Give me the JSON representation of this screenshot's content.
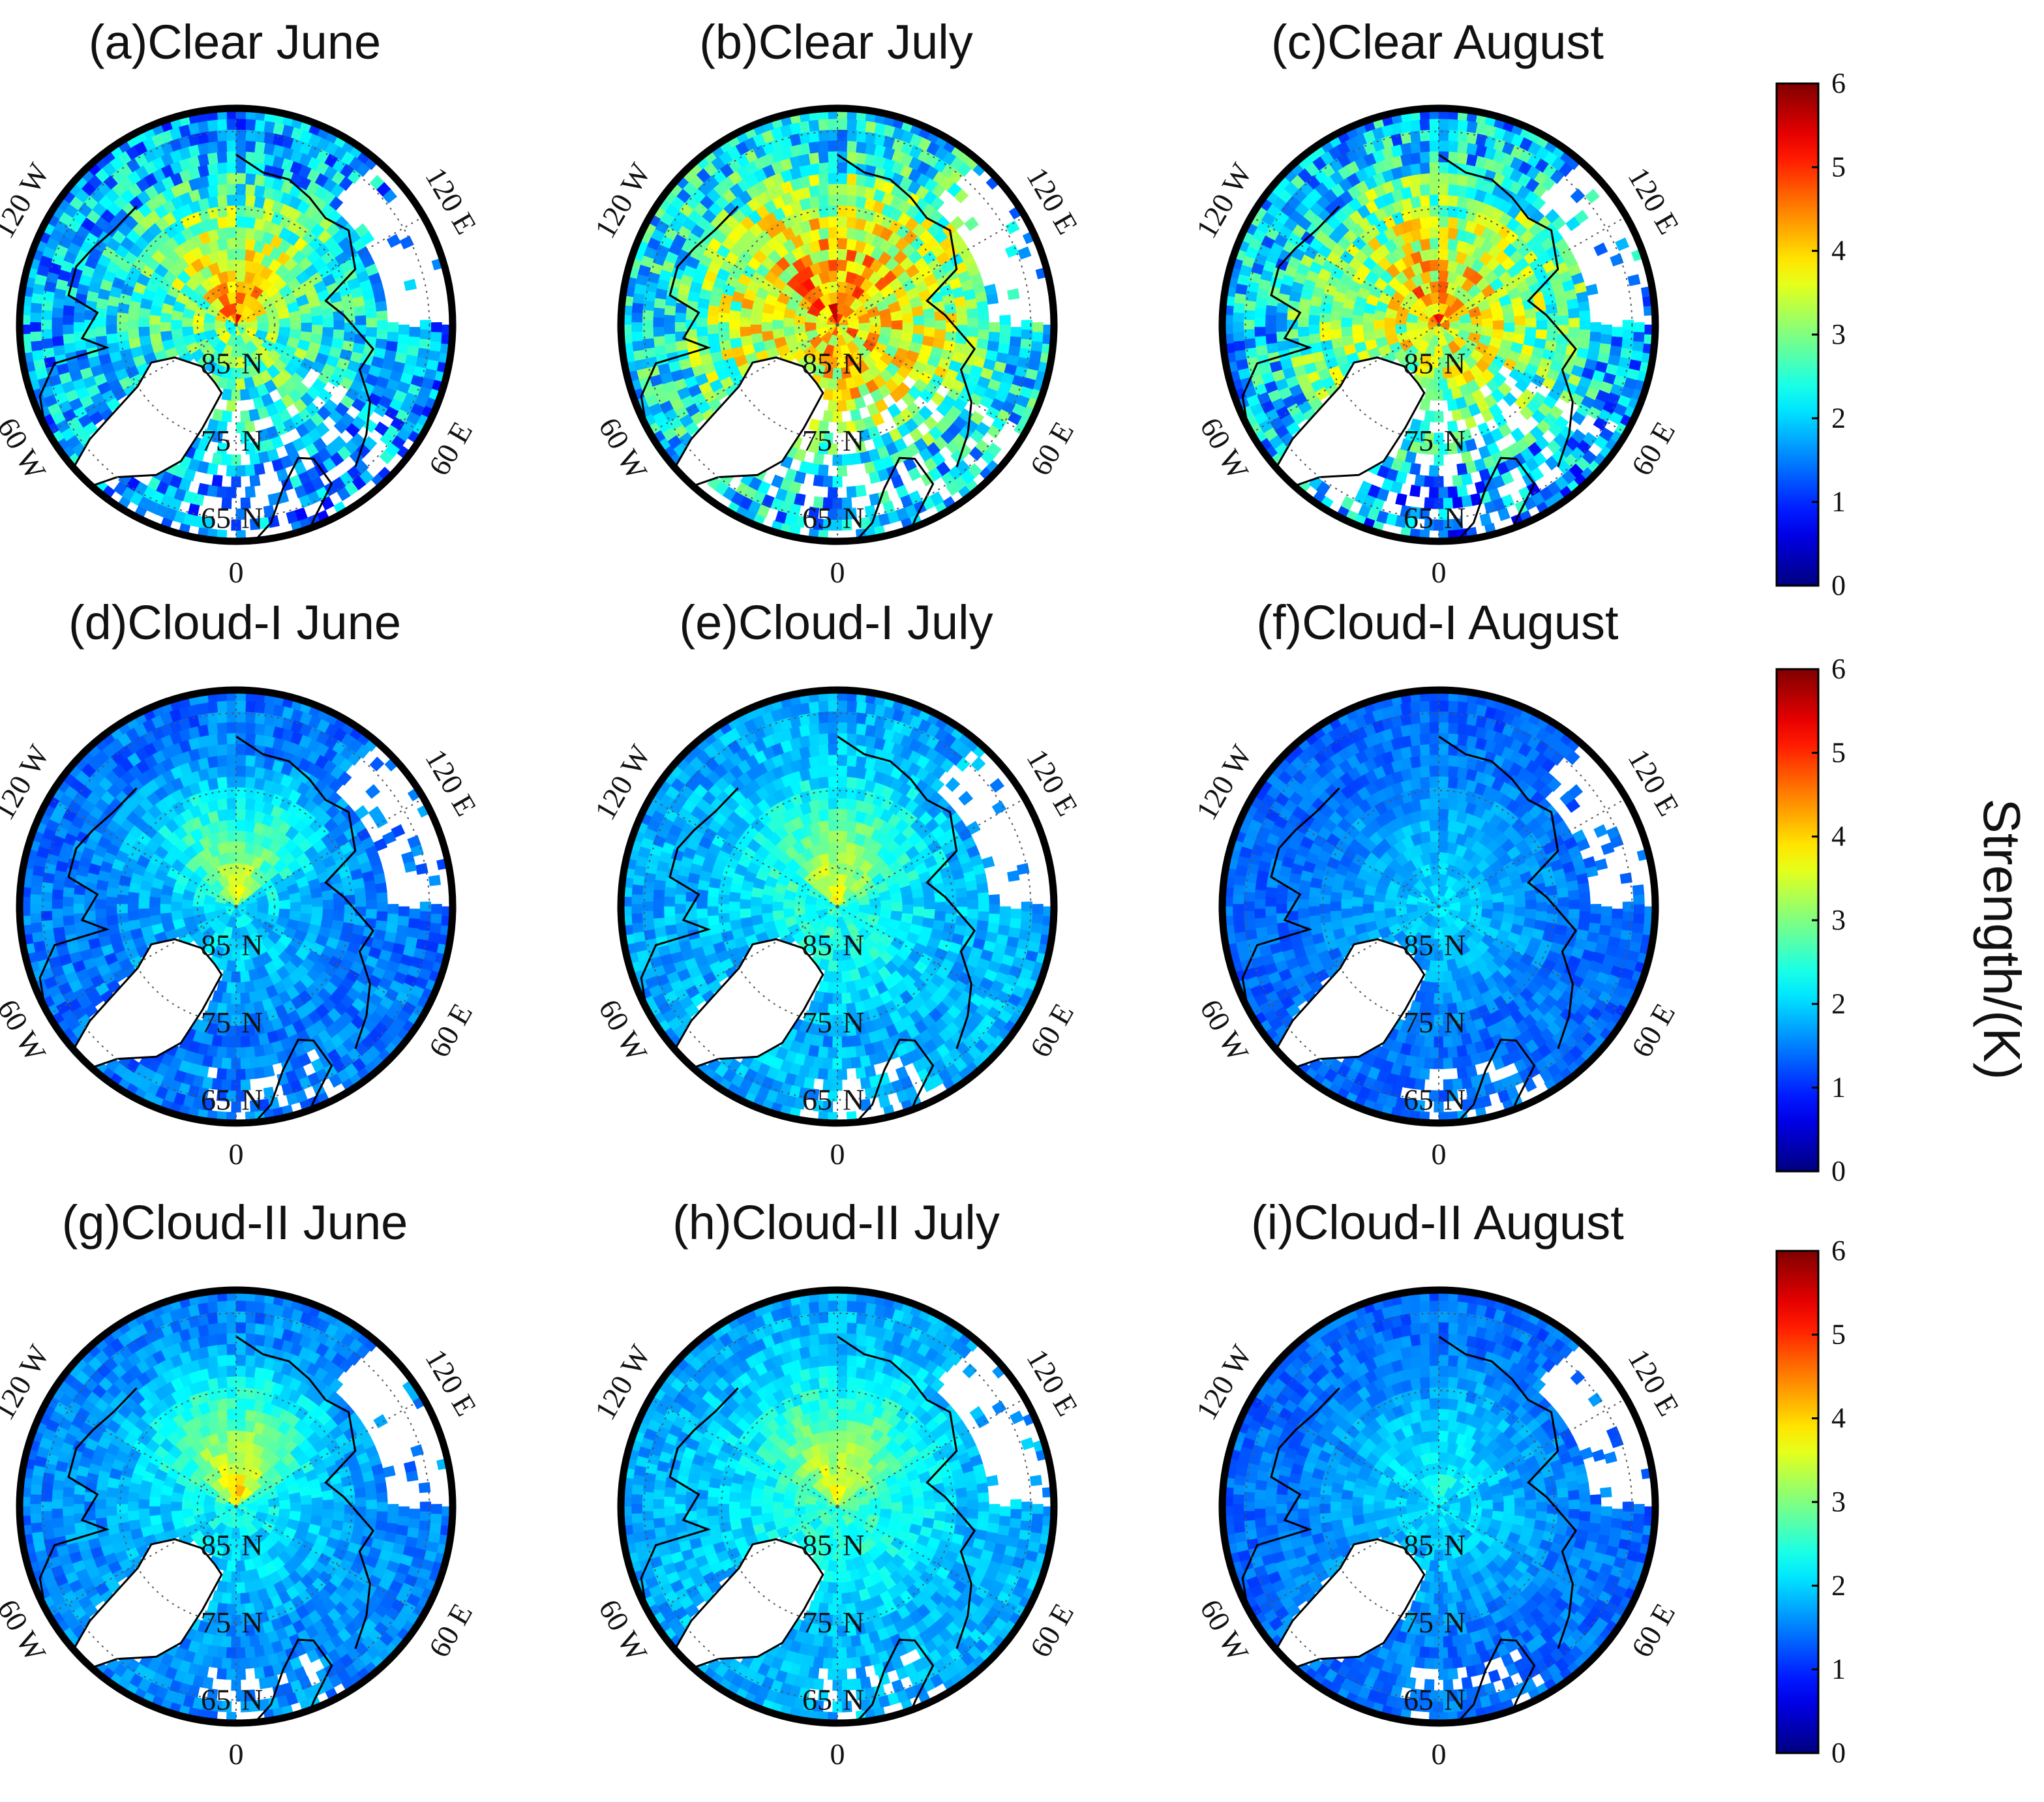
{
  "chart_data": {
    "type": "heatmap",
    "projection": "north polar stereographic",
    "rows": [
      "Clear",
      "Cloud-I",
      "Cloud-II"
    ],
    "months": [
      "June",
      "July",
      "August"
    ],
    "panels": [
      {
        "id": "a",
        "title": "(a)Clear June",
        "row": 0,
        "col": 0,
        "center_level": 3.0,
        "pacific_level": 4.0,
        "atlantic_level": 1.3,
        "land_level": 1.7,
        "noise": 0.9
      },
      {
        "id": "b",
        "title": "(b)Clear July",
        "row": 0,
        "col": 1,
        "center_level": 4.2,
        "pacific_level": 4.6,
        "atlantic_level": 1.5,
        "land_level": 2.0,
        "noise": 1.0
      },
      {
        "id": "c",
        "title": "(c)Clear August",
        "row": 0,
        "col": 2,
        "center_level": 3.7,
        "pacific_level": 4.2,
        "atlantic_level": 1.3,
        "land_level": 1.7,
        "noise": 1.0
      },
      {
        "id": "d",
        "title": "(d)Cloud-I June",
        "row": 1,
        "col": 0,
        "center_level": 2.1,
        "pacific_level": 3.0,
        "atlantic_level": 1.4,
        "land_level": 1.6,
        "noise": 0.4
      },
      {
        "id": "e",
        "title": "(e)Cloud-I July",
        "row": 1,
        "col": 1,
        "center_level": 2.5,
        "pacific_level": 3.2,
        "atlantic_level": 1.7,
        "land_level": 2.0,
        "noise": 0.4
      },
      {
        "id": "f",
        "title": "(f)Cloud-I August",
        "row": 1,
        "col": 2,
        "center_level": 2.0,
        "pacific_level": 2.1,
        "atlantic_level": 1.4,
        "land_level": 1.5,
        "noise": 0.3
      },
      {
        "id": "g",
        "title": "(g)Cloud-II June",
        "row": 2,
        "col": 0,
        "center_level": 2.3,
        "pacific_level": 3.3,
        "atlantic_level": 1.5,
        "land_level": 1.7,
        "noise": 0.35
      },
      {
        "id": "h",
        "title": "(h)Cloud-II July",
        "row": 2,
        "col": 1,
        "center_level": 2.6,
        "pacific_level": 3.3,
        "atlantic_level": 1.7,
        "land_level": 2.0,
        "noise": 0.35
      },
      {
        "id": "i",
        "title": "(i)Cloud-II August",
        "row": 2,
        "col": 2,
        "center_level": 2.1,
        "pacific_level": 2.3,
        "atlantic_level": 1.4,
        "land_level": 1.5,
        "noise": 0.3
      }
    ],
    "map_labels": {
      "lon_0": "0",
      "lon_60e": "60 E",
      "lon_60w": "60 W",
      "lon_120e": "120 E",
      "lon_120w": "120 W",
      "lat_85": "85",
      "lat_75": "75",
      "lat_65": "65",
      "lat_suffix": "N"
    },
    "colorbar": {
      "ticks": [
        "0",
        "1",
        "2",
        "3",
        "4",
        "5",
        "6"
      ],
      "range": [
        0,
        6
      ],
      "colormap": "jet",
      "count": 3
    },
    "unit_label": "Strength/(K)",
    "colors": {
      "frame": "#000000",
      "graticule": "#555555",
      "missing": "#ffffff"
    }
  }
}
